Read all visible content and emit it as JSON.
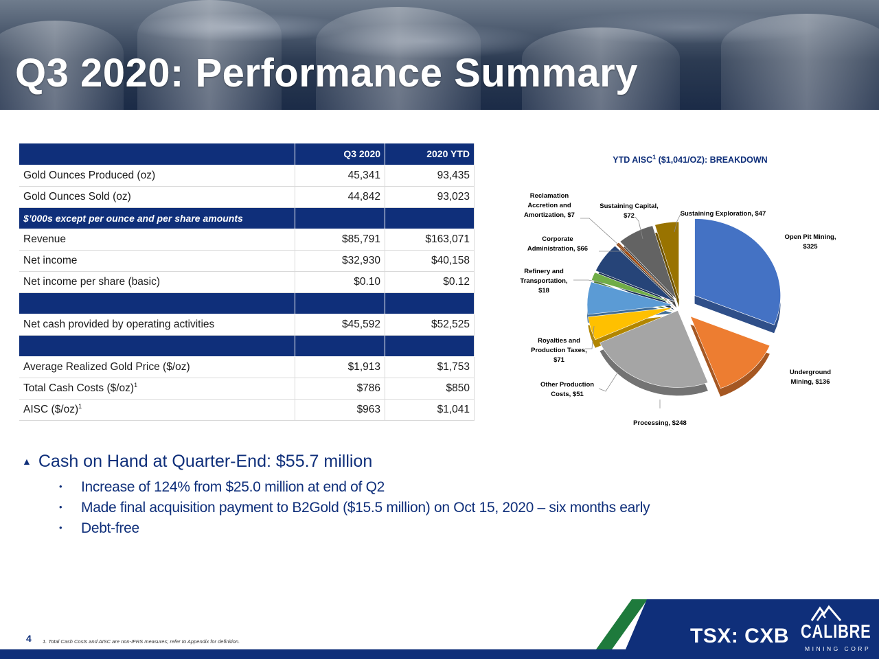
{
  "header": {
    "title": "Q3 2020: Performance Summary"
  },
  "table": {
    "columns": [
      "",
      "Q3 2020",
      "2020 YTD"
    ],
    "rows": [
      {
        "label": "Gold Ounces Produced (oz)",
        "q3": "45,341",
        "ytd": "93,435"
      },
      {
        "label": "Gold Ounces Sold (oz)",
        "q3": "44,842",
        "ytd": "93,023"
      },
      {
        "label": "$’000s except per ounce and per share amounts",
        "q3": "",
        "ytd": ""
      },
      {
        "label": "Revenue",
        "q3": "$85,791",
        "ytd": "$163,071"
      },
      {
        "label": "Net income",
        "q3": "$32,930",
        "ytd": "$40,158"
      },
      {
        "label": "Net income per share (basic)",
        "q3": "$0.10",
        "ytd": "$0.12"
      },
      {
        "label": "",
        "q3": "",
        "ytd": ""
      },
      {
        "label": "Net cash provided by operating activities",
        "q3": "$45,592",
        "ytd": "$52,525"
      },
      {
        "label": "",
        "q3": "",
        "ytd": ""
      },
      {
        "label": "Average Realized Gold Price ($/oz)",
        "q3": "$1,913",
        "ytd": "$1,753"
      },
      {
        "label": "Total Cash Costs ($/oz)",
        "q3": "$786",
        "ytd": "$850",
        "sup": "1"
      },
      {
        "label": "AISC ($/oz)",
        "q3": "$963",
        "ytd": "$1,041",
        "sup": "1"
      }
    ]
  },
  "chart_data": {
    "type": "pie",
    "title": "YTD AISC",
    "title_sup": "1",
    "title_rest": " ($1,041/OZ): BREAKDOWN",
    "series": [
      {
        "values": [
          325,
          136,
          248,
          51,
          71,
          18,
          66,
          7,
          72,
          47
        ]
      }
    ],
    "categories": [
      "Open Pit Mining",
      "Underground Mining",
      "Processing",
      "Other Production Costs",
      "Royalties and Production Taxes",
      "Refinery and Transportation",
      "Corporate Administration",
      "Reclamation Accretion and Amortization",
      "Sustaining Capital",
      "Sustaining Exploration"
    ],
    "labels": [
      [
        "Open Pit Mining,",
        "$325"
      ],
      [
        "Underground",
        "Mining,  $136"
      ],
      [
        "Processing,  $248"
      ],
      [
        "Other Production",
        "Costs,  $51"
      ],
      [
        "Royalties and",
        "Production Taxes,",
        "$71"
      ],
      [
        "Refinery and",
        "Transportation,",
        "$18"
      ],
      [
        "Corporate",
        "Administration,  $66"
      ],
      [
        "Reclamation",
        "Accretion and",
        "Amortization,  $7"
      ],
      [
        "Sustaining Capital,",
        "$72"
      ],
      [
        "Sustaining Exploration,  $47"
      ]
    ],
    "colors": [
      "#4472c4",
      "#ed7d31",
      "#a5a5a5",
      "#a5a5a5",
      "#ffc000",
      "#5b9bd5",
      "#70ad47",
      "#264478",
      "#9e480e",
      "#636363",
      "#997300"
    ],
    "legend": "none"
  },
  "bullets": {
    "main": "Cash on Hand at Quarter-End:  $55.7 million",
    "subs": [
      "Increase of 124% from $25.0 million at end of Q2",
      "Made final acquisition payment to B2Gold ($15.5 million) on Oct 15, 2020 – six months early",
      "Debt-free"
    ]
  },
  "footer": {
    "page_number": "4",
    "footnote": "1. Total Cash Costs and AISC are non-IFRS measures; refer to Appendix for definition.",
    "ticker": "TSX: CXB",
    "logo_name": "CALIBRE",
    "logo_sub": "MINING CORP"
  }
}
